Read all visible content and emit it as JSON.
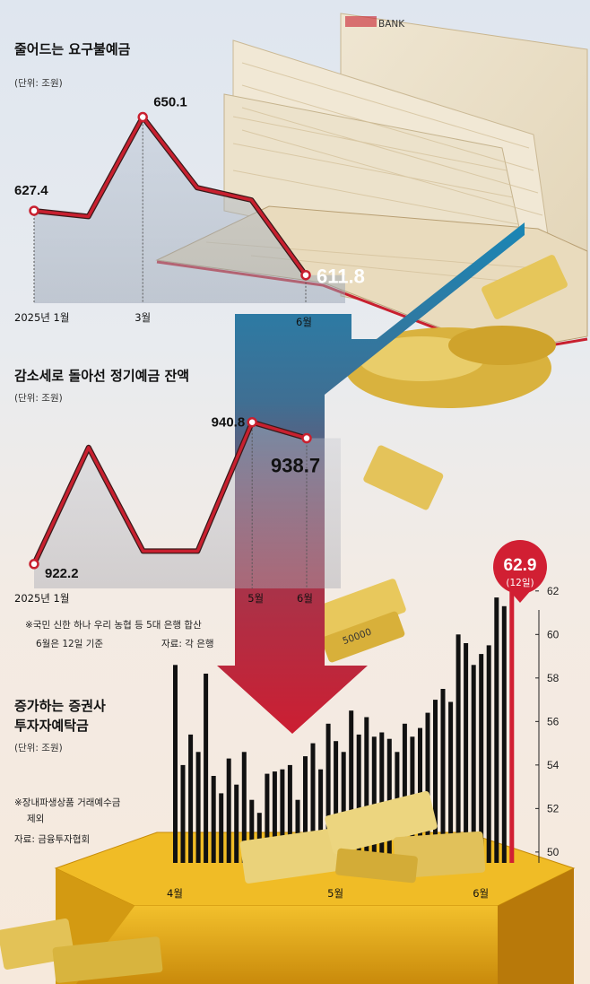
{
  "colors": {
    "line": "#c8202f",
    "line_outline": "#3a1a1a",
    "bar": "#111111",
    "highlight": "#d11f33",
    "arrow_top": "#1a86b5",
    "arrow_bottom": "#cc1e32",
    "box": "#e3a511"
  },
  "decor": {
    "bank_label": "BANK",
    "banknote_label": "50000"
  },
  "chart_data": [
    {
      "type": "line",
      "title": "줄어드는 요구불예금",
      "unit": "(단위: 조원)",
      "x": [
        "2025년 1월",
        "2월",
        "3월",
        "4월",
        "5월",
        "6월"
      ],
      "x_tick_labels": [
        "2025년 1월",
        "",
        "3월",
        "",
        "",
        "6월"
      ],
      "values": [
        627.4,
        626.0,
        650.1,
        633.0,
        630.0,
        611.8
      ],
      "value_labels": [
        "627.4",
        "",
        "650.1",
        "",
        "",
        "611.8"
      ],
      "ylim": [
        605,
        655
      ]
    },
    {
      "type": "line",
      "title": "감소세로 돌아선 정기예금 잔액",
      "unit": "(단위: 조원)",
      "x": [
        "2025년 1월",
        "2월",
        "3월",
        "4월",
        "5월",
        "6월"
      ],
      "x_tick_labels": [
        "2025년 1월",
        "",
        "",
        "",
        "5월",
        "6월"
      ],
      "values": [
        922.2,
        937.5,
        923.9,
        923.9,
        940.8,
        938.7
      ],
      "value_labels": [
        "922.2",
        "",
        "",
        "",
        "940.8",
        "938.7"
      ],
      "ylim": [
        919,
        943
      ],
      "notes": [
        "※국민 신한 하나 우리 농협 등 5대 은행 합산",
        "6월은 12일 기준",
        "자료: 각 은행"
      ]
    },
    {
      "type": "bar",
      "title_lines": [
        "증가하는 증권사",
        "투자자예탁금"
      ],
      "unit": "(단위: 조원)",
      "notes": [
        "※장내파생상품 거래예수금",
        "제외",
        "자료: 금융투자협회"
      ],
      "x_tick_labels": [
        "4월",
        "5월",
        "6월"
      ],
      "y_ticks": [
        50,
        52,
        54,
        56,
        58,
        60,
        62
      ],
      "ylim": [
        49.5,
        63.6
      ],
      "values": [
        58.6,
        54.0,
        55.4,
        54.6,
        58.2,
        53.5,
        52.7,
        54.3,
        53.1,
        54.6,
        52.4,
        51.8,
        53.6,
        53.7,
        53.8,
        54.0,
        52.4,
        54.4,
        55.0,
        53.8,
        55.9,
        55.1,
        54.6,
        56.5,
        55.4,
        56.2,
        55.3,
        55.5,
        55.2,
        54.6,
        55.9,
        55.3,
        55.7,
        56.4,
        57.0,
        57.5,
        56.9,
        60.0,
        59.6,
        58.6,
        59.1,
        59.5,
        61.7,
        61.3,
        62.9
      ],
      "highlight": {
        "value_label": "62.9",
        "date_label": "(12일)"
      }
    }
  ]
}
